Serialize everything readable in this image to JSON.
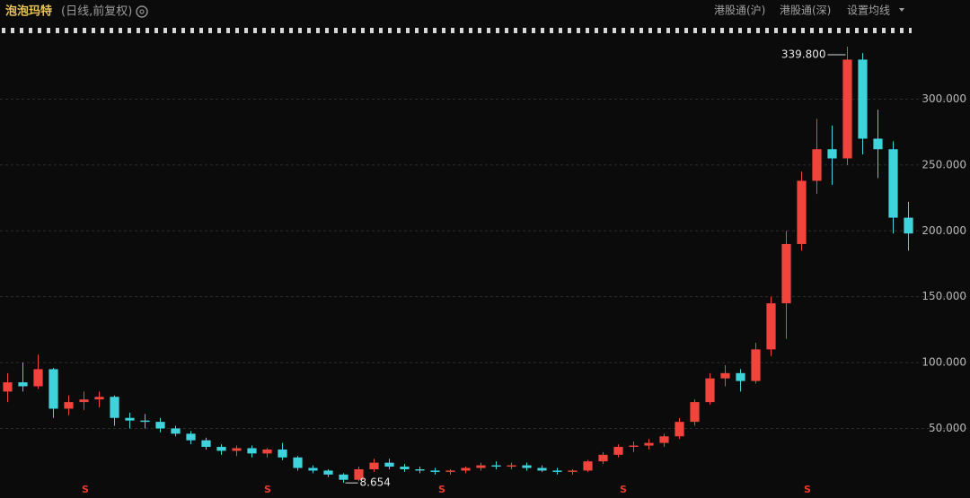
{
  "chart_data": {
    "type": "candlestick",
    "title": "泡泡玛特",
    "subtitle": "(日线,前复权)",
    "toolbar": [
      "港股通(沪)",
      "港股通(深)",
      "设置均线"
    ],
    "open": [
      78,
      85,
      82,
      95,
      65,
      70,
      72,
      74,
      58,
      56,
      55,
      50,
      46,
      41,
      36,
      33,
      35,
      31,
      34,
      28,
      20,
      18,
      15,
      11,
      19,
      24,
      21,
      19,
      18,
      17,
      18,
      20,
      22,
      21,
      22,
      20,
      18,
      17,
      18,
      25,
      30,
      36,
      37,
      39,
      44,
      55,
      70,
      88,
      92,
      86,
      110,
      145,
      190,
      238,
      262,
      255,
      330,
      270,
      262,
      210
    ],
    "high": [
      92,
      100,
      106,
      96,
      75,
      78,
      78,
      75,
      62,
      61,
      58,
      52,
      48,
      43,
      38,
      37,
      37,
      35,
      39,
      29,
      22,
      19,
      16,
      21,
      27,
      27,
      23,
      21,
      20,
      19,
      21,
      24,
      25,
      24,
      24,
      22,
      20,
      19,
      26,
      32,
      38,
      40,
      42,
      46,
      58,
      72,
      92,
      98,
      95,
      115,
      150,
      200,
      245,
      285,
      280,
      339.8,
      335,
      292,
      268,
      222
    ],
    "low": [
      70,
      78,
      80,
      58,
      60,
      64,
      66,
      52,
      50,
      50,
      47,
      44,
      38,
      34,
      30,
      29,
      28,
      28,
      26,
      18,
      16,
      13,
      8.654,
      10,
      17,
      19,
      17,
      16,
      15,
      15,
      16,
      18,
      19,
      19,
      18,
      17,
      15,
      15,
      17,
      23,
      28,
      32,
      34,
      36,
      42,
      52,
      68,
      82,
      78,
      84,
      105,
      118,
      185,
      228,
      235,
      250,
      258,
      240,
      198,
      185
    ],
    "close": [
      85,
      82,
      95,
      65,
      70,
      72,
      74,
      58,
      56,
      55,
      50,
      46,
      41,
      36,
      33,
      35,
      31,
      34,
      28,
      20,
      18,
      15,
      11,
      19,
      24,
      21,
      19,
      18,
      17,
      18,
      20,
      22,
      21,
      22,
      20,
      18,
      17,
      18,
      25,
      30,
      36,
      37,
      39,
      44,
      55,
      70,
      88,
      92,
      86,
      110,
      145,
      190,
      238,
      262,
      255,
      330,
      270,
      262,
      210,
      198
    ],
    "up_color": "#f0443c",
    "down_color": "#3fd4dc",
    "ylim": [
      4,
      348
    ],
    "yticks": [
      {
        "value": 50,
        "label": "50.000"
      },
      {
        "value": 100,
        "label": "100.000"
      },
      {
        "value": 150,
        "label": "150.000"
      },
      {
        "value": 200,
        "label": "200.000"
      },
      {
        "value": 250,
        "label": "250.000"
      },
      {
        "value": 300,
        "label": "300.000"
      }
    ],
    "grid": true,
    "max_label": "339.800",
    "min_label": "8.654",
    "events": [
      "S",
      "S",
      "S",
      "S",
      "S"
    ]
  }
}
